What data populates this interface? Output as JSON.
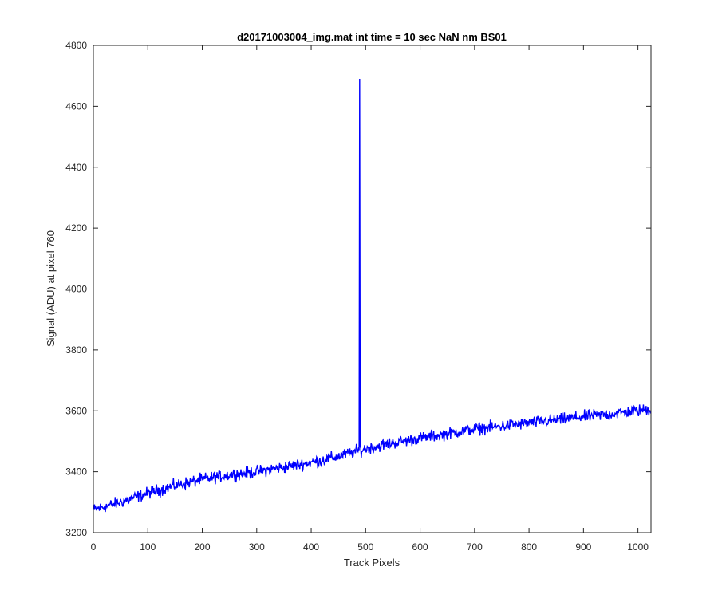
{
  "chart_data": {
    "type": "line",
    "title": "d20171003004_img.mat int time = 10 sec  NaN nm BS01",
    "xlabel": "Track Pixels",
    "ylabel": "Signal (ADU) at pixel 760",
    "xlim": [
      0,
      1024
    ],
    "ylim": [
      3200,
      4800
    ],
    "xticks": [
      0,
      100,
      200,
      300,
      400,
      500,
      600,
      700,
      800,
      900,
      1000
    ],
    "yticks": [
      3200,
      3400,
      3600,
      3800,
      4000,
      4200,
      4400,
      4600,
      4800
    ],
    "grid": false,
    "series": [
      {
        "color": "#0000ff",
        "trend": {
          "x": [
            0,
            50,
            100,
            150,
            200,
            250,
            300,
            350,
            400,
            450,
            488,
            500,
            550,
            600,
            650,
            700,
            750,
            800,
            850,
            900,
            950,
            1000,
            1024
          ],
          "y": [
            3275,
            3300,
            3330,
            3355,
            3375,
            3390,
            3400,
            3415,
            3430,
            3450,
            3470,
            3475,
            3495,
            3510,
            3525,
            3540,
            3550,
            3560,
            3570,
            3580,
            3590,
            3600,
            3605
          ]
        },
        "noise_amplitude": 15,
        "spike": {
          "x": 489,
          "y": 4690
        }
      }
    ]
  }
}
